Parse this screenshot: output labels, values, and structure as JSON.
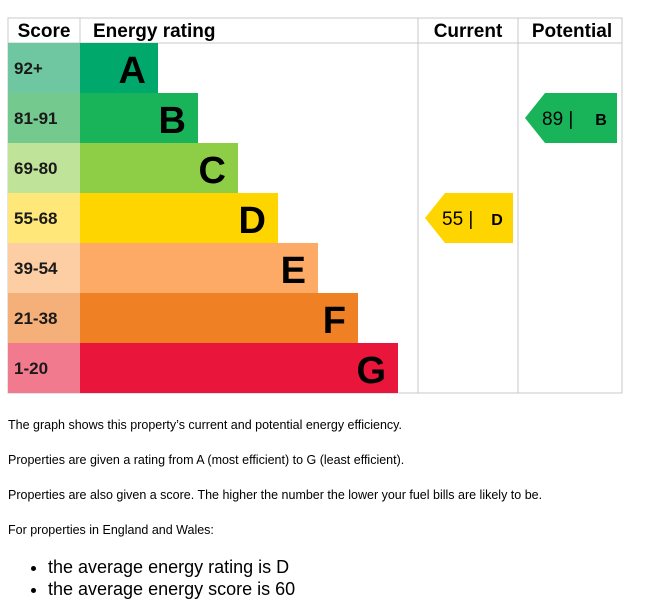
{
  "chart_data": {
    "type": "bar",
    "headers": {
      "score": "Score",
      "rating": "Energy rating",
      "current": "Current",
      "potential": "Potential"
    },
    "bands": [
      {
        "score": "92+",
        "letter": "A",
        "color": "#00A86B",
        "score_color": "#6FC7A1"
      },
      {
        "score": "81-91",
        "letter": "B",
        "color": "#19B459",
        "score_color": "#73C98E"
      },
      {
        "score": "69-80",
        "letter": "C",
        "color": "#8DCE46",
        "score_color": "#C0E39A"
      },
      {
        "score": "55-68",
        "letter": "D",
        "color": "#FFD500",
        "score_color": "#FFE77A"
      },
      {
        "score": "39-54",
        "letter": "E",
        "color": "#FCAA65",
        "score_color": "#FDCDA4"
      },
      {
        "score": "21-38",
        "letter": "F",
        "color": "#EF8023",
        "score_color": "#F5B07A"
      },
      {
        "score": "1-20",
        "letter": "G",
        "color": "#E9153B",
        "score_color": "#F17A8E"
      }
    ],
    "current": {
      "value": 55,
      "letter": "D",
      "color": "#FFD500",
      "label": "55 |"
    },
    "potential": {
      "value": 89,
      "letter": "B",
      "color": "#19B459",
      "label": "89 |"
    }
  },
  "description": {
    "line1": "The graph shows this property’s current and potential energy efficiency.",
    "line2": "Properties are given a rating from A (most efficient) to G (least efficient).",
    "line3": "Properties are also given a score. The higher the number the lower your fuel bills are likely to be.",
    "line4": "For properties in England and Wales:",
    "bullets": [
      "the average energy rating is D",
      "the average energy score is 60"
    ]
  }
}
